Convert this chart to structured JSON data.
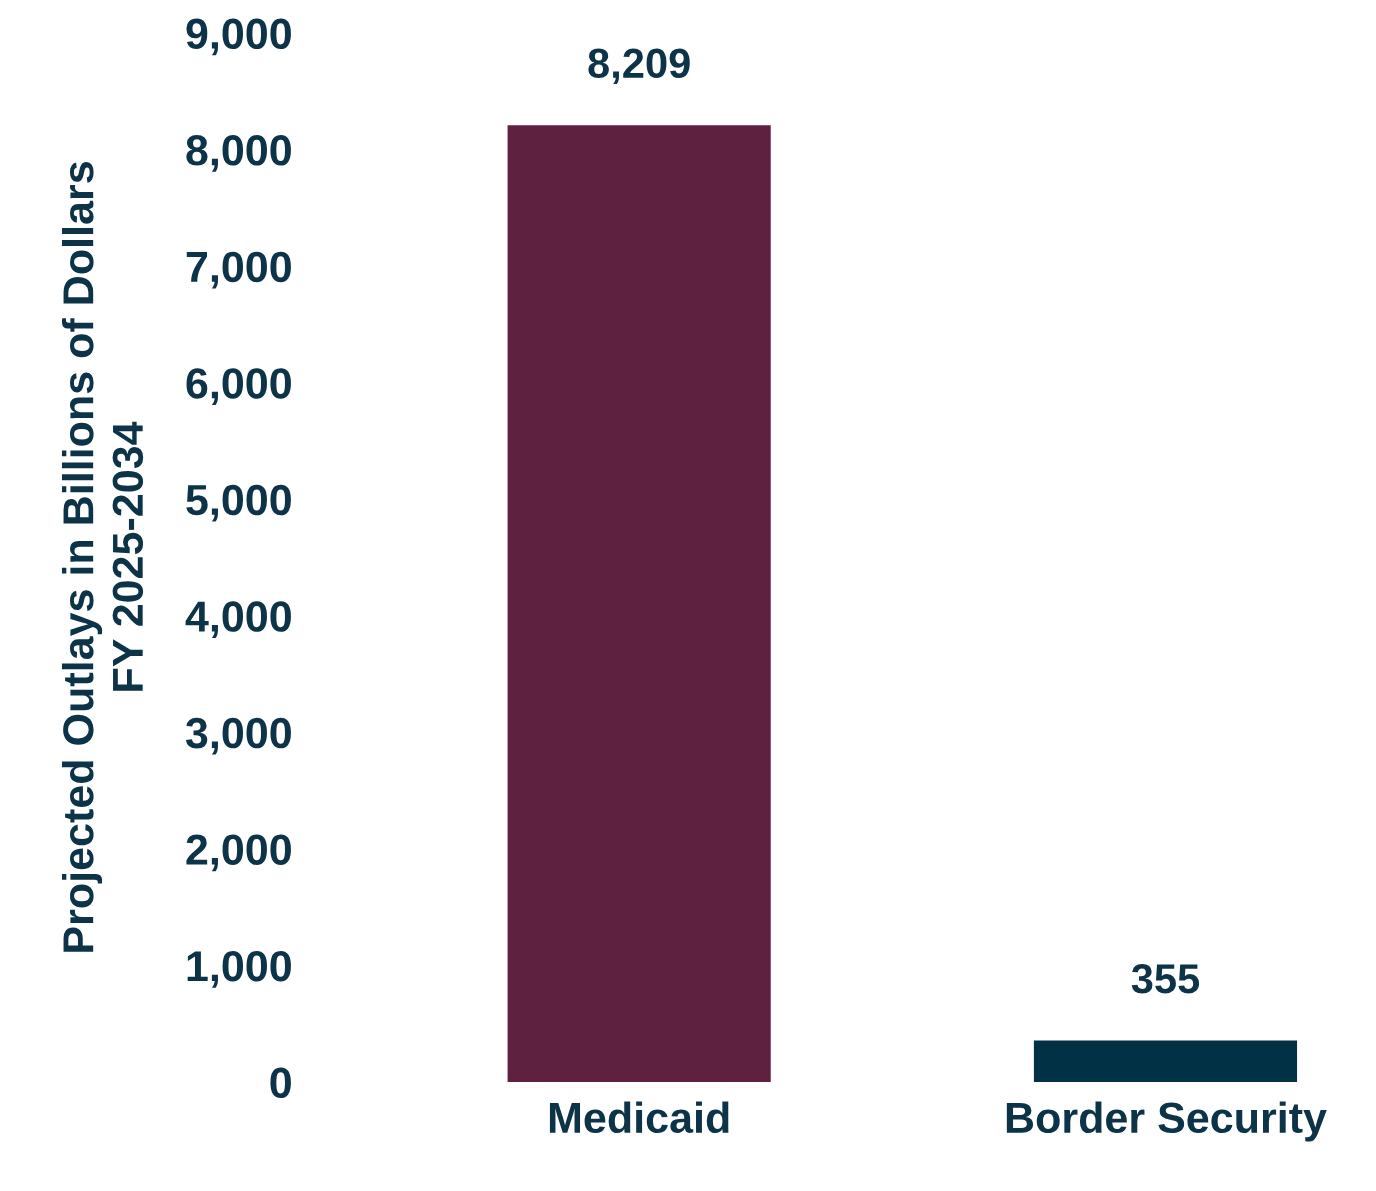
{
  "chart_data": {
    "type": "bar",
    "ylabel": "Projected Outlays in Billions of Dollars\nFY 2025-2034",
    "categories": [
      "Medicaid",
      "Border Security"
    ],
    "values": [
      8209,
      355
    ],
    "colors": [
      "#5e2140",
      "#003145"
    ],
    "value_labels": [
      "8,209",
      "355"
    ],
    "ylim": [
      0,
      9000
    ],
    "yticks": [
      {
        "value": 0,
        "label": "0"
      },
      {
        "value": 1000,
        "label": "1,000"
      },
      {
        "value": 2000,
        "label": "2,000"
      },
      {
        "value": 3000,
        "label": "3,000"
      },
      {
        "value": 4000,
        "label": "4,000"
      },
      {
        "value": 5000,
        "label": "5,000"
      },
      {
        "value": 6000,
        "label": "6,000"
      },
      {
        "value": 7000,
        "label": "7,000"
      },
      {
        "value": 8000,
        "label": "8,000"
      },
      {
        "value": 9000,
        "label": "9,000"
      }
    ],
    "grid": false,
    "legend": false
  }
}
